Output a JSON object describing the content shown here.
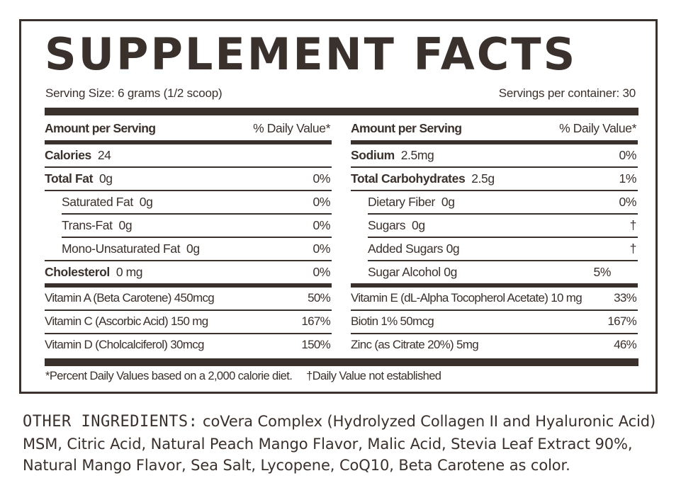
{
  "title": "SUPPLEMENT FACTS",
  "serving_size": "Serving Size:  6 grams (1/2 scoop)",
  "servings_per_container": "Servings per container:  30",
  "left": {
    "header_label": "Amount per Serving",
    "header_pct": "% Daily Value*",
    "rows": [
      {
        "name": "Calories",
        "value": "24",
        "pct": ""
      },
      {
        "name": "Total Fat",
        "value": "0g",
        "pct": "0%"
      },
      {
        "name": "Saturated Fat",
        "value": "0g",
        "pct": "0%"
      },
      {
        "name": "Trans-Fat",
        "value": "0g",
        "pct": "0%"
      },
      {
        "name": "Mono-Unsaturated Fat",
        "value": "0g",
        "pct": "0%"
      },
      {
        "name": "Cholesterol",
        "value": "0 mg",
        "pct": "0%"
      }
    ],
    "vitamins": [
      {
        "name": "Vitamin A (Beta Carotene) 450mcg",
        "pct": "50%"
      },
      {
        "name": "Vitamin C (Ascorbic Acid) 150 mg",
        "pct": "167%"
      },
      {
        "name": "Vitamin D (Cholcalciferol) 30mcg",
        "pct": "150%"
      }
    ]
  },
  "right": {
    "header_label": "Amount per Serving",
    "header_pct": "% Daily Value*",
    "rows": [
      {
        "name": "Sodium",
        "value": "2.5mg",
        "pct": "0%"
      },
      {
        "name": "Total Carbohydrates",
        "value": "2.5g",
        "pct": "1%"
      },
      {
        "name": "Dietary Fiber",
        "value": "0g",
        "pct": "0%"
      },
      {
        "name": "Sugars",
        "value": "0g",
        "pct": "†"
      },
      {
        "name": "Added Sugars",
        "value": "0g",
        "pct": "†"
      },
      {
        "name": "Sugar Alcohol",
        "value": "0g",
        "pct": "5%"
      }
    ],
    "vitamins": [
      {
        "name": "Vitamin E (dL-Alpha Tocopherol Acetate) 10 mg",
        "pct": "33%"
      },
      {
        "name": "Biotin 1% 50mcg",
        "pct": "167%"
      },
      {
        "name": "Zinc (as Citrate 20%) 5mg",
        "pct": "46%"
      }
    ]
  },
  "footnote": "*Percent Daily Values based on a 2,000 calorie diet.     †Daily Value not established",
  "ingredients_label": "OTHER INGREDIENTS:",
  "ingredients_text": " coVera Complex (Hydrolyzed Collagen II and Hyaluronic Acid) MSM, Citric Acid, Natural Peach Mango Flavor, Malic Acid, Stevia Leaf Extract 90%, Natural Mango Flavor, Sea Salt, Lycopene, CoQ10, Beta Carotene as color."
}
